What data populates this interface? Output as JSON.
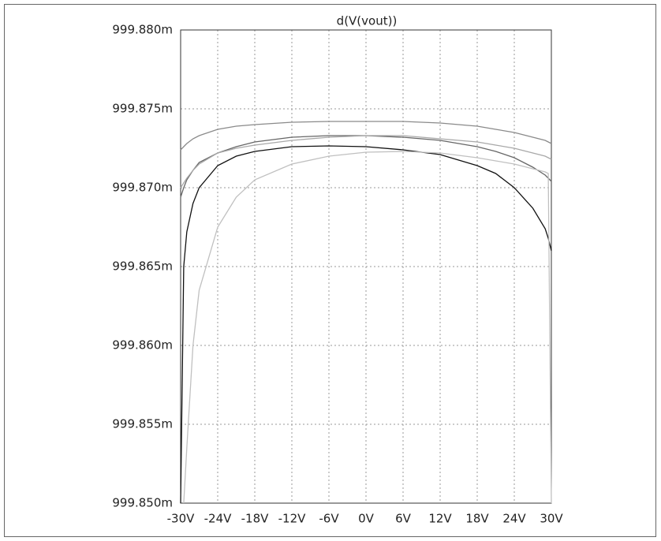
{
  "chart_data": {
    "type": "line",
    "title": "d(V(vout))",
    "x": [
      -30,
      -29.5,
      -29,
      -28,
      -27,
      -24,
      -21,
      -18,
      -12,
      -6,
      0,
      6,
      12,
      18,
      21,
      24,
      27,
      29,
      29.5,
      30
    ],
    "series": [
      {
        "color": "#8a8a8a",
        "values": [
          999.8724,
          999.8726,
          999.8728,
          999.8731,
          999.8733,
          999.8737,
          999.8739,
          999.874,
          999.87415,
          999.8742,
          999.8742,
          999.8742,
          999.8741,
          999.8739,
          999.8737,
          999.8735,
          999.8732,
          999.873,
          999.8729,
          999.8728
        ]
      },
      {
        "color": "#666666",
        "values": [
          999.8694,
          999.87,
          999.8705,
          999.8711,
          999.8716,
          999.8722,
          999.8726,
          999.8729,
          999.8732,
          999.8733,
          999.8733,
          999.8732,
          999.873,
          999.8726,
          999.8723,
          999.8719,
          999.8713,
          999.8708,
          999.8706,
          999.8704
        ]
      },
      {
        "color": "#111111",
        "values": [
          999.85,
          999.865,
          999.8672,
          999.869,
          999.87,
          999.8714,
          999.872,
          999.8723,
          999.8726,
          999.87265,
          999.8726,
          999.8724,
          999.8721,
          999.8714,
          999.8709,
          999.87,
          999.8687,
          999.8674,
          999.8668,
          999.866
        ]
      },
      {
        "color": "#c0c0c0",
        "values": [
          null,
          999.85,
          999.8535,
          999.86,
          999.8635,
          999.8675,
          999.8694,
          999.8705,
          999.8715,
          999.872,
          999.87225,
          999.8723,
          999.8722,
          999.8719,
          999.8717,
          999.8715,
          999.8712,
          999.871,
          999.8709,
          999.85
        ]
      },
      {
        "color": "#a8a8a8",
        "values": [
          999.87,
          999.8703,
          999.8706,
          999.8711,
          999.8715,
          999.8722,
          999.8725,
          999.8727,
          999.873,
          999.8732,
          999.8733,
          999.8733,
          999.8731,
          999.8729,
          999.8727,
          999.8725,
          999.8722,
          999.872,
          999.8719,
          999.8718
        ]
      }
    ],
    "xlim": [
      -30,
      30
    ],
    "xticks": [
      {
        "value": -30,
        "label": "-30V"
      },
      {
        "value": -24,
        "label": "-24V"
      },
      {
        "value": -18,
        "label": "-18V"
      },
      {
        "value": -12,
        "label": "-12V"
      },
      {
        "value": -6,
        "label": "-6V"
      },
      {
        "value": 0,
        "label": "0V"
      },
      {
        "value": 6,
        "label": "6V"
      },
      {
        "value": 12,
        "label": "12V"
      },
      {
        "value": 18,
        "label": "18V"
      },
      {
        "value": 24,
        "label": "24V"
      },
      {
        "value": 30,
        "label": "30V"
      }
    ],
    "ylim": [
      999.85,
      999.88
    ],
    "yticks": [
      {
        "value": 999.85,
        "label": "999.850m"
      },
      {
        "value": 999.855,
        "label": "999.855m"
      },
      {
        "value": 999.86,
        "label": "999.860m"
      },
      {
        "value": 999.865,
        "label": "999.865m"
      },
      {
        "value": 999.87,
        "label": "999.870m"
      },
      {
        "value": 999.875,
        "label": "999.875m"
      },
      {
        "value": 999.88,
        "label": "999.880m"
      }
    ],
    "grid": true
  }
}
